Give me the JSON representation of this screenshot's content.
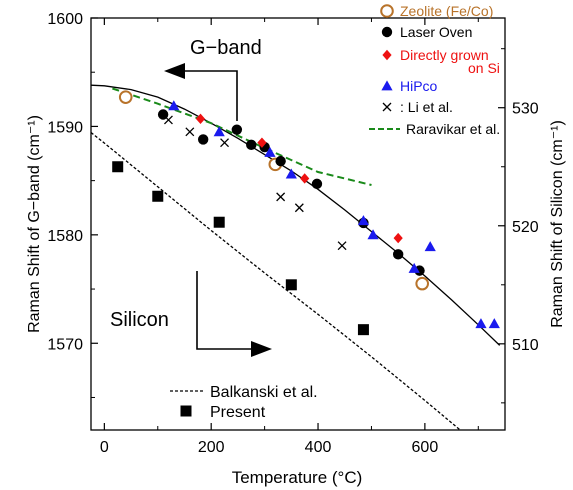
{
  "chart_data": {
    "type": "scatter",
    "xlabel": "Temperature (°C)",
    "ylabel_left": "Raman Shift of G−band (cm⁻¹)",
    "ylabel_right": "Raman Shift of Silicon (cm⁻¹)",
    "xlim": [
      -25,
      750
    ],
    "ylim_left": [
      1562,
      1600
    ],
    "ylim_right": [
      502.7,
      537.6
    ],
    "x_ticks": [
      "0",
      "200",
      "400",
      "600"
    ],
    "x_tick_values": [
      0,
      200,
      400,
      600
    ],
    "y_ticks_left": [
      "1570",
      "1580",
      "1590",
      "1600"
    ],
    "y_tick_values_left": [
      1570,
      1580,
      1590,
      1600
    ],
    "y_ticks_right": [
      "510",
      "520",
      "530"
    ],
    "y_tick_values_right": [
      510,
      520,
      530
    ],
    "annotations": {
      "gband": "G−band",
      "silicon": "Silicon"
    },
    "legend_top": [
      {
        "label": "Zeolite (Fe/Co)",
        "marker": "open-circle",
        "color": "#b8732a"
      },
      {
        "label": "Laser Oven",
        "marker": "filled-circle",
        "color": "#000000"
      },
      {
        "label": "Directly grown on Si",
        "label_line1": "Directly grown",
        "label_line2": "on Si",
        "marker": "diamond",
        "color": "#ee1111"
      },
      {
        "label": "HiPco",
        "marker": "triangle",
        "color": "#1a1aee"
      },
      {
        "label": ": Li et al.",
        "marker": "cross",
        "color": "#000000"
      },
      {
        "label": "Raravikar et al.",
        "marker": "dashed-line",
        "color": "#1a8a1a"
      }
    ],
    "legend_bottom": [
      {
        "label": "Balkanski et al.",
        "marker": "dotted-line",
        "color": "#000000"
      },
      {
        "label": "Present",
        "marker": "filled-square",
        "color": "#000000"
      }
    ],
    "series": [
      {
        "name": "Zeolite (Fe/Co)",
        "axis": "left",
        "marker": "open-circle",
        "color": "#b8732a",
        "points": [
          [
            40,
            1592.7
          ],
          [
            320,
            1586.5
          ],
          [
            595,
            1575.5
          ]
        ]
      },
      {
        "name": "Laser Oven",
        "axis": "left",
        "marker": "filled-circle",
        "color": "#000000",
        "points": [
          [
            110,
            1591.1
          ],
          [
            185,
            1588.8
          ],
          [
            248,
            1589.7
          ],
          [
            275,
            1588.3
          ],
          [
            300,
            1588.1
          ],
          [
            330,
            1586.8
          ],
          [
            398,
            1584.7
          ],
          [
            485,
            1581.1
          ],
          [
            550,
            1578.2
          ],
          [
            590,
            1576.7
          ]
        ]
      },
      {
        "name": "Directly grown on Si",
        "axis": "left",
        "marker": "diamond",
        "color": "#ee1111",
        "points": [
          [
            180,
            1590.7
          ],
          [
            295,
            1588.5
          ],
          [
            375,
            1585.2
          ],
          [
            550,
            1579.7
          ]
        ]
      },
      {
        "name": "HiPco",
        "axis": "left",
        "marker": "triangle",
        "color": "#1a1aee",
        "points": [
          [
            130,
            1591.9
          ],
          [
            215,
            1589.5
          ],
          [
            310,
            1587.6
          ],
          [
            350,
            1585.6
          ],
          [
            485,
            1581.3
          ],
          [
            503,
            1580.0
          ],
          [
            580,
            1576.9
          ],
          [
            610,
            1578.9
          ],
          [
            705,
            1571.8
          ],
          [
            730,
            1571.8
          ]
        ]
      },
      {
        "name": "Li et al.",
        "axis": "left",
        "marker": "cross",
        "color": "#000000",
        "points": [
          [
            120,
            1590.6
          ],
          [
            160,
            1589.5
          ],
          [
            225,
            1588.5
          ],
          [
            330,
            1583.5
          ],
          [
            365,
            1582.5
          ],
          [
            445,
            1579.0
          ]
        ]
      },
      {
        "name": "Present",
        "axis": "right",
        "marker": "filled-square",
        "color": "#000000",
        "points": [
          [
            25,
            525.0
          ],
          [
            100,
            522.5
          ],
          [
            215,
            520.3
          ],
          [
            350,
            515.0
          ],
          [
            485,
            511.2
          ]
        ]
      }
    ],
    "lines": [
      {
        "name": "G-band fit",
        "axis": "left",
        "style": "solid",
        "color": "#000000",
        "points": [
          [
            -25,
            1593.8
          ],
          [
            0,
            1593.75
          ],
          [
            50,
            1593.4
          ],
          [
            100,
            1592.7
          ],
          [
            150,
            1591.6
          ],
          [
            200,
            1590.3
          ],
          [
            250,
            1588.9
          ],
          [
            300,
            1587.4
          ],
          [
            350,
            1585.9
          ],
          [
            400,
            1584.2
          ],
          [
            450,
            1582.3
          ],
          [
            500,
            1580.3
          ],
          [
            550,
            1578.3
          ],
          [
            600,
            1576.2
          ],
          [
            650,
            1574.0
          ],
          [
            700,
            1571.7
          ],
          [
            740,
            1569.8
          ]
        ]
      },
      {
        "name": "Raravikar et al.",
        "axis": "left",
        "style": "dashed",
        "color": "#1a8a1a",
        "points": [
          [
            15,
            1593.5
          ],
          [
            100,
            1592.1
          ],
          [
            200,
            1590.3
          ],
          [
            300,
            1588.0
          ],
          [
            400,
            1585.8
          ],
          [
            500,
            1584.6
          ]
        ]
      },
      {
        "name": "Balkanski et al.",
        "axis": "right",
        "style": "dotted",
        "color": "#000000",
        "points": [
          [
            -25,
            527.9
          ],
          [
            0,
            527.0
          ],
          [
            100,
            523.3
          ],
          [
            200,
            519.6
          ],
          [
            300,
            516.0
          ],
          [
            400,
            512.5
          ],
          [
            500,
            508.9
          ],
          [
            600,
            505.2
          ],
          [
            690,
            501.8
          ]
        ]
      }
    ],
    "arrows": [
      {
        "target": "left-axis",
        "direction": "left"
      },
      {
        "target": "right-axis",
        "direction": "right"
      }
    ],
    "grid": false
  }
}
